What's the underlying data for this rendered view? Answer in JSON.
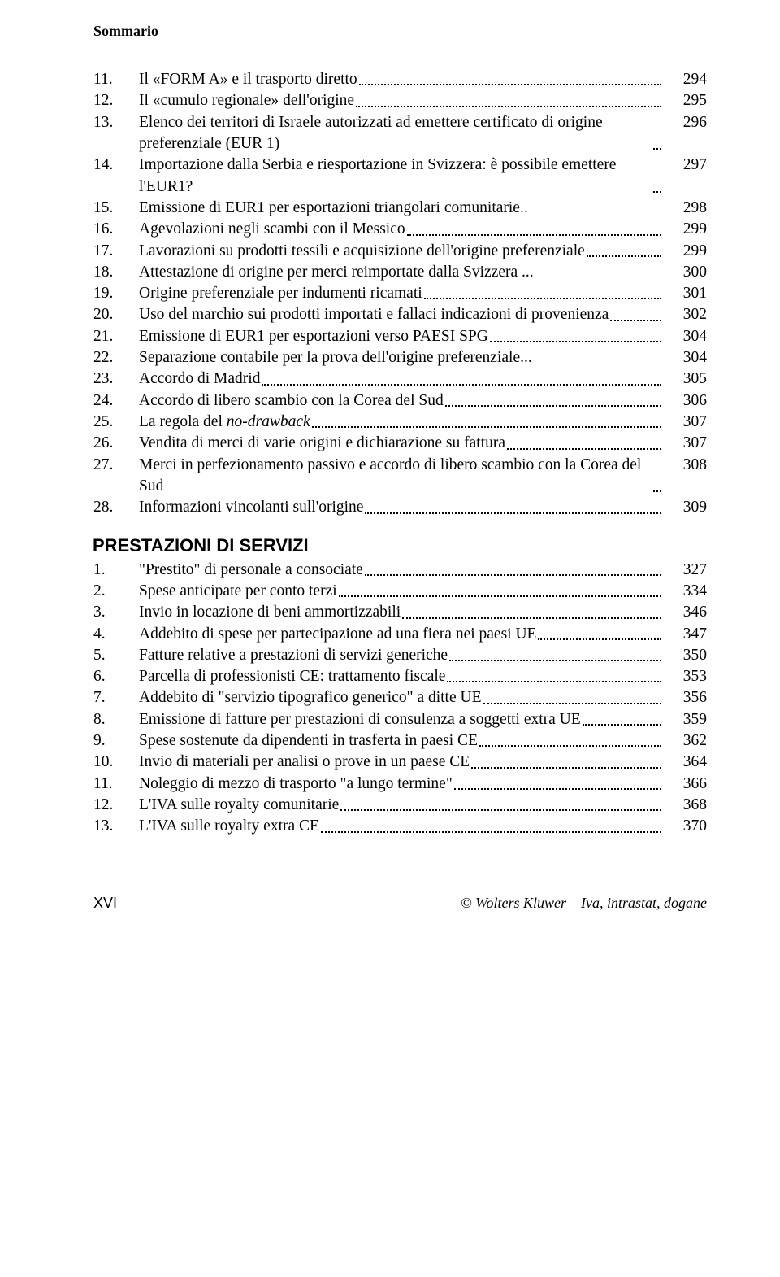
{
  "header": "Sommario",
  "section1": {
    "items": [
      {
        "n": "11.",
        "text": "Il «FORM A» e il trasporto diretto",
        "page": "294"
      },
      {
        "n": "12.",
        "text": "Il «cumulo regionale» dell'origine",
        "page": "295"
      },
      {
        "n": "13.",
        "text": "Elenco dei territori di Israele autorizzati ad emettere certificato di origine preferenziale (EUR 1)",
        "page": "296"
      },
      {
        "n": "14.",
        "text": "Importazione dalla Serbia e riesportazione in Svizzera: è possibile emettere l'EUR1?",
        "page": "297"
      },
      {
        "n": "15.",
        "text": "Emissione di EUR1 per esportazioni triangolari comunitarie..",
        "page": "298",
        "noleader": true
      },
      {
        "n": "16.",
        "text": "Agevolazioni negli scambi con il Messico",
        "page": "299"
      },
      {
        "n": "17.",
        "text": "Lavorazioni su prodotti tessili e acquisizione dell'origine preferenziale",
        "page": "299"
      },
      {
        "n": "18.",
        "text": "Attestazione di origine per merci reimportate dalla Svizzera ...",
        "page": "300",
        "noleader": true
      },
      {
        "n": "19.",
        "text": "Origine preferenziale per indumenti ricamati",
        "page": "301"
      },
      {
        "n": "20.",
        "text": "Uso del marchio sui prodotti importati e fallaci indicazioni di provenienza",
        "page": "302"
      },
      {
        "n": "21.",
        "text": "Emissione di EUR1 per esportazioni verso PAESI SPG",
        "page": "304"
      },
      {
        "n": "22.",
        "text": "Separazione contabile per la prova dell'origine preferenziale...",
        "page": "304",
        "noleader": true
      },
      {
        "n": "23.",
        "text": "Accordo di Madrid",
        "page": "305"
      },
      {
        "n": "24.",
        "text": "Accordo di libero scambio con la Corea del Sud",
        "page": "306"
      },
      {
        "n": "25.",
        "text": "La regola del ",
        "italic_tail": "no-drawback",
        "page": "307"
      },
      {
        "n": "26.",
        "text": "Vendita di merci di varie origini e dichiarazione su fattura",
        "page": "307"
      },
      {
        "n": "27.",
        "text": "Merci in perfezionamento passivo e accordo di libero scambio con la Corea del Sud",
        "page": "308"
      },
      {
        "n": "28.",
        "text": "Informazioni vincolanti sull'origine",
        "page": "309"
      }
    ]
  },
  "section2": {
    "title": "PRESTAZIONI DI SERVIZI",
    "items": [
      {
        "n": "1.",
        "text": "\"Prestito\" di personale a consociate",
        "page": "327"
      },
      {
        "n": "2.",
        "text": "Spese anticipate per conto terzi",
        "page": "334"
      },
      {
        "n": "3.",
        "text": "Invio in locazione di beni ammortizzabili",
        "page": "346"
      },
      {
        "n": "4.",
        "text": "Addebito di spese per partecipazione ad una fiera nei paesi UE",
        "page": "347"
      },
      {
        "n": "5.",
        "text": "Fatture relative a prestazioni di servizi generiche",
        "page": "350"
      },
      {
        "n": "6.",
        "text": "Parcella di professionisti CE: trattamento fiscale",
        "page": "353"
      },
      {
        "n": "7.",
        "text": "Addebito di \"servizio tipografico generico\" a ditte UE",
        "page": "356"
      },
      {
        "n": "8.",
        "text": "Emissione di fatture per prestazioni di consulenza a soggetti extra UE",
        "page": "359"
      },
      {
        "n": "9.",
        "text": "Spese sostenute da dipendenti in trasferta in paesi CE",
        "page": "362"
      },
      {
        "n": "10.",
        "text": "Invio di materiali per analisi o prove in un paese CE",
        "page": "364"
      },
      {
        "n": "11.",
        "text": "Noleggio di mezzo di trasporto \"a lungo termine\"",
        "page": "366"
      },
      {
        "n": "12.",
        "text": "L'IVA sulle royalty comunitarie",
        "page": "368"
      },
      {
        "n": "13.",
        "text": "L'IVA sulle royalty extra CE",
        "page": "370"
      }
    ]
  },
  "footer": {
    "left": "XVI",
    "right": "© Wolters Kluwer – Iva, intrastat, dogane"
  }
}
